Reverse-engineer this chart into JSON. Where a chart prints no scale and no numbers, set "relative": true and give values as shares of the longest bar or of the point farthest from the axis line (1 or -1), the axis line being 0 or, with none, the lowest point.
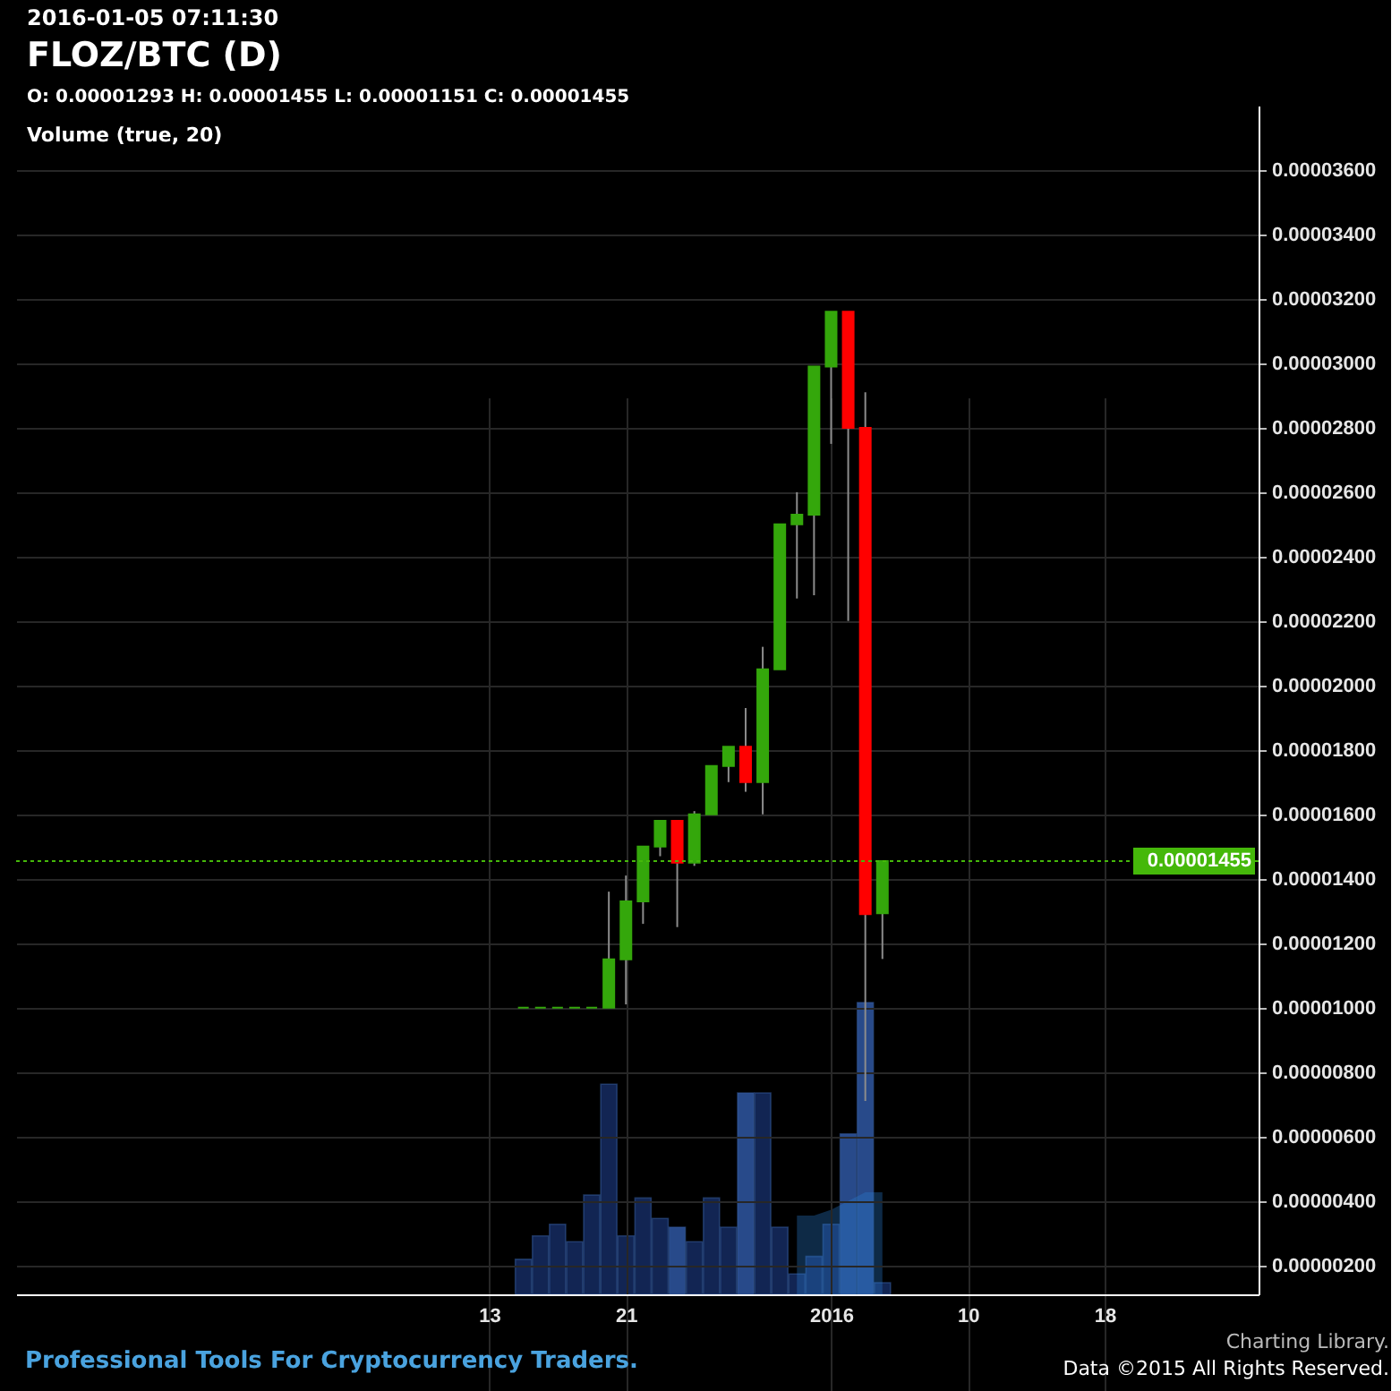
{
  "chart_data": [
    {
      "type": "bar",
      "relative": true,
      "title": "Volume (true, 20)",
      "tick_labels": false,
      "grid": true,
      "x": [
        "2015-12-15",
        "2015-12-16",
        "2015-12-17",
        "2015-12-18",
        "2015-12-19",
        "2015-12-20",
        "2015-12-21",
        "2015-12-22",
        "2015-12-23",
        "2015-12-24",
        "2015-12-25",
        "2015-12-26",
        "2015-12-27",
        "2015-12-28",
        "2015-12-29",
        "2015-12-30",
        "2015-12-31",
        "2016-01-01",
        "2016-01-02",
        "2016-01-03",
        "2016-01-04",
        "2016-01-05"
      ],
      "xlim": [
        "2015-11-15T08:00",
        "2016-01-27"
      ],
      "series": [
        {
          "colors": [
            "#142a5c",
            "#142a5c",
            "#142a5c",
            "#142a5c",
            "#142a5c",
            "#142a5c",
            "#142a5c",
            "#142a5c",
            "#142a5c",
            "#2d5399",
            "#142a5c",
            "#142a5c",
            "#142a5c",
            "#2d5399",
            "#142a5c",
            "#142a5c",
            "#142a5c",
            "#142a5c",
            "#142a5c",
            "#2d5399",
            "#2d5399",
            "#142a5c"
          ],
          "values": [
            0.12,
            0.2,
            0.24,
            0.18,
            0.34,
            0.72,
            0.2,
            0.33,
            0.26,
            0.23,
            0.18,
            0.33,
            0.23,
            0.69,
            0.69,
            0.23,
            0.07,
            0.13,
            0.24,
            0.55,
            1,
            0.04
          ]
        },
        {
          "type": "area",
          "color": "#2a7fd4",
          "values": [
            null,
            null,
            null,
            null,
            null,
            null,
            null,
            null,
            null,
            null,
            null,
            null,
            null,
            null,
            null,
            null,
            0.27,
            0.27,
            0.29,
            0.32,
            0.35,
            0.35
          ]
        }
      ]
    },
    {
      "type": "candlestick",
      "title": "FLOZ/BTC (D)",
      "subtitle": "O: 0.00001293 H: 0.00001455 L: 0.00001151 C: 0.00001455",
      "annotations": [
        "2016-01-05 07:11:30",
        "Professional Tools For Cryptocurrency Traders.",
        "Charting Library.",
        "Data ©2015 All Rights Reserved."
      ],
      "x": [
        "2015-12-15",
        "2015-12-16",
        "2015-12-17",
        "2015-12-18",
        "2015-12-19",
        "2015-12-20",
        "2015-12-21",
        "2015-12-22",
        "2015-12-23",
        "2015-12-24",
        "2015-12-25",
        "2015-12-26",
        "2015-12-27",
        "2015-12-28",
        "2015-12-29",
        "2015-12-30",
        "2015-12-31",
        "2016-01-01",
        "2016-01-02",
        "2016-01-03",
        "2016-01-04",
        "2016-01-05"
      ],
      "ohlc": [
        [
          1e-05,
          1e-05,
          1e-05,
          1e-05
        ],
        [
          1e-05,
          1e-05,
          1e-05,
          1e-05
        ],
        [
          1e-05,
          1e-05,
          1e-05,
          1e-05
        ],
        [
          1e-05,
          1e-05,
          1e-05,
          1e-05
        ],
        [
          1e-05,
          1e-05,
          1e-05,
          1e-05
        ],
        [
          1e-05,
          1.36e-05,
          1e-05,
          1.15e-05
        ],
        [
          1.15e-05,
          1.41e-05,
          1.01e-05,
          1.33e-05
        ],
        [
          1.33e-05,
          1.5e-05,
          1.26e-05,
          1.5e-05
        ],
        [
          1.5e-05,
          1.58e-05,
          1.47e-05,
          1.58e-05
        ],
        [
          1.58e-05,
          1.58e-05,
          1.25e-05,
          1.45e-05
        ],
        [
          1.45e-05,
          1.61e-05,
          1.44e-05,
          1.6e-05
        ],
        [
          1.6e-05,
          1.75e-05,
          1.6e-05,
          1.75e-05
        ],
        [
          1.75e-05,
          1.81e-05,
          1.7e-05,
          1.81e-05
        ],
        [
          1.81e-05,
          1.93e-05,
          1.67e-05,
          1.7e-05
        ],
        [
          1.7e-05,
          2.12e-05,
          1.6e-05,
          2.05e-05
        ],
        [
          2.05e-05,
          2.5e-05,
          2.05e-05,
          2.5e-05
        ],
        [
          2.5e-05,
          2.6e-05,
          2.27e-05,
          2.53e-05
        ],
        [
          2.53e-05,
          2.99e-05,
          2.28e-05,
          2.99e-05
        ],
        [
          2.99e-05,
          3.16e-05,
          2.75e-05,
          3.16e-05
        ],
        [
          3.16e-05,
          3.16e-05,
          2.2e-05,
          2.8e-05
        ],
        [
          2.8e-05,
          2.91e-05,
          7.1e-06,
          1.29e-05
        ],
        [
          1.293e-05,
          1.455e-05,
          1.151e-05,
          1.455e-05
        ]
      ],
      "colors": [
        "#34a70b",
        "#34a70b",
        "#34a70b",
        "#34a70b",
        "#34a70b",
        "#34a70b",
        "#34a70b",
        "#34a70b",
        "#34a70b",
        "#ff0000",
        "#34a70b",
        "#34a70b",
        "#34a70b",
        "#ff0000",
        "#34a70b",
        "#34a70b",
        "#34a70b",
        "#34a70b",
        "#34a70b",
        "#ff0000",
        "#ff0000",
        "#34a70b"
      ],
      "xlim": [
        "2015-11-15T08:00",
        "2016-01-27"
      ],
      "xticks": [
        {
          "value": "2015-12-13",
          "label": "13"
        },
        {
          "value": "2015-12-21",
          "label": "21"
        },
        {
          "value": "2016-01-02",
          "label": "2016"
        },
        {
          "value": "2016-01-10",
          "label": "10"
        },
        {
          "value": "2016-01-18",
          "label": "18"
        }
      ],
      "ylim": [
        1.1e-06,
        3.8e-05
      ],
      "yticks": [
        {
          "value": 2e-06,
          "label": "0.00000200"
        },
        {
          "value": 4e-06,
          "label": "0.00000400"
        },
        {
          "value": 6e-06,
          "label": "0.00000600"
        },
        {
          "value": 8e-06,
          "label": "0.00000800"
        },
        {
          "value": 1e-05,
          "label": "0.00001000"
        },
        {
          "value": 1.2e-05,
          "label": "0.00001200"
        },
        {
          "value": 1.4e-05,
          "label": "0.00001400"
        },
        {
          "value": 1.6e-05,
          "label": "0.00001600"
        },
        {
          "value": 1.8e-05,
          "label": "0.00001800"
        },
        {
          "value": 2e-05,
          "label": "0.00002000"
        },
        {
          "value": 2.2e-05,
          "label": "0.00002200"
        },
        {
          "value": 2.4e-05,
          "label": "0.00002400"
        },
        {
          "value": 2.6e-05,
          "label": "0.00002600"
        },
        {
          "value": 2.8e-05,
          "label": "0.00002800"
        },
        {
          "value": 3e-05,
          "label": "0.00003000"
        },
        {
          "value": 3.2e-05,
          "label": "0.00003200"
        },
        {
          "value": 3.4e-05,
          "label": "0.00003400"
        },
        {
          "value": 3.6e-05,
          "label": "0.00003600"
        }
      ],
      "ref_lines": [
        {
          "axis": "y",
          "value": 1.455e-05,
          "label": "0.00001455",
          "color": "#45b80a",
          "line_style": "dotted"
        }
      ],
      "grid": true
    }
  ]
}
